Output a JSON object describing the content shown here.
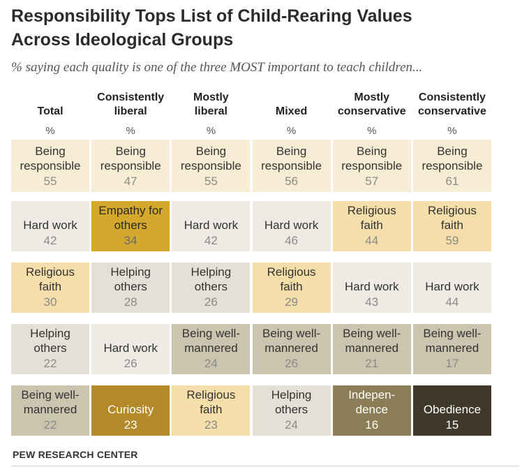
{
  "title_line1": "Responsibility Tops List of Child-Rearing Values",
  "title_line2": "Across Ideological Groups",
  "subtitle": "% saying each quality is one of the three MOST important to teach children...",
  "source": "PEW RESEARCH CENTER",
  "colors": {
    "being_responsible": "#f7edd4",
    "hard_work": "#eeebe4",
    "religious_faith": "#f4dfaa",
    "helping_others": "#e4e0d6",
    "being_well_mannered": "#cbc4ae",
    "empathy_for_others": "#d4a82c",
    "curiosity": "#b3892a",
    "independence": "#8b7d55",
    "obedience": "#3d3829"
  },
  "chart_data": {
    "type": "table",
    "title": "Responsibility Tops List of Child-Rearing Values Across Ideological Groups",
    "subtitle": "% saying each quality is one of the three MOST important to teach children...",
    "unit_row": "%",
    "columns": [
      {
        "header_line1": "",
        "header_line2": "Total",
        "unit": "%",
        "ranks": [
          {
            "quality_lines": [
              "Being",
              "responsible"
            ],
            "value": 55,
            "color_key": "being_responsible"
          },
          {
            "quality_lines": [
              "Hard work"
            ],
            "value": 42,
            "color_key": "hard_work"
          },
          {
            "quality_lines": [
              "Religious",
              "faith"
            ],
            "value": 30,
            "color_key": "religious_faith"
          },
          {
            "quality_lines": [
              "Helping",
              "others"
            ],
            "value": 22,
            "color_key": "helping_others"
          },
          {
            "quality_lines": [
              "Being well-",
              "mannered"
            ],
            "value": 22,
            "color_key": "being_well_mannered"
          }
        ]
      },
      {
        "header_line1": "Consistently",
        "header_line2": "liberal",
        "unit": "%",
        "ranks": [
          {
            "quality_lines": [
              "Being",
              "responsible"
            ],
            "value": 47,
            "color_key": "being_responsible"
          },
          {
            "quality_lines": [
              "Empathy for",
              "others"
            ],
            "value": 34,
            "color_key": "empathy_for_others"
          },
          {
            "quality_lines": [
              "Helping",
              "others"
            ],
            "value": 28,
            "color_key": "helping_others"
          },
          {
            "quality_lines": [
              "Hard work"
            ],
            "value": 26,
            "color_key": "hard_work"
          },
          {
            "quality_lines": [
              "Curiosity"
            ],
            "value": 23,
            "color_key": "curiosity"
          }
        ]
      },
      {
        "header_line1": "Mostly",
        "header_line2": "liberal",
        "unit": "%",
        "ranks": [
          {
            "quality_lines": [
              "Being",
              "responsible"
            ],
            "value": 55,
            "color_key": "being_responsible"
          },
          {
            "quality_lines": [
              "Hard work"
            ],
            "value": 42,
            "color_key": "hard_work"
          },
          {
            "quality_lines": [
              "Helping",
              "others"
            ],
            "value": 26,
            "color_key": "helping_others"
          },
          {
            "quality_lines": [
              "Being well-",
              "mannered"
            ],
            "value": 24,
            "color_key": "being_well_mannered"
          },
          {
            "quality_lines": [
              "Religious",
              "faith"
            ],
            "value": 23,
            "color_key": "religious_faith"
          }
        ]
      },
      {
        "header_line1": "",
        "header_line2": "Mixed",
        "unit": "%",
        "ranks": [
          {
            "quality_lines": [
              "Being",
              "responsible"
            ],
            "value": 56,
            "color_key": "being_responsible"
          },
          {
            "quality_lines": [
              "Hard work"
            ],
            "value": 46,
            "color_key": "hard_work"
          },
          {
            "quality_lines": [
              "Religious",
              "faith"
            ],
            "value": 29,
            "color_key": "religious_faith"
          },
          {
            "quality_lines": [
              "Being well-",
              "mannered"
            ],
            "value": 26,
            "color_key": "being_well_mannered"
          },
          {
            "quality_lines": [
              "Helping",
              "others"
            ],
            "value": 24,
            "color_key": "helping_others"
          }
        ]
      },
      {
        "header_line1": "Mostly",
        "header_line2": "conservative",
        "unit": "%",
        "ranks": [
          {
            "quality_lines": [
              "Being",
              "responsible"
            ],
            "value": 57,
            "color_key": "being_responsible"
          },
          {
            "quality_lines": [
              "Religious",
              "faith"
            ],
            "value": 44,
            "color_key": "religious_faith"
          },
          {
            "quality_lines": [
              "Hard work"
            ],
            "value": 43,
            "color_key": "hard_work"
          },
          {
            "quality_lines": [
              "Being well-",
              "mannered"
            ],
            "value": 21,
            "color_key": "being_well_mannered"
          },
          {
            "quality_lines": [
              "Indepen-",
              "dence"
            ],
            "value": 16,
            "color_key": "independence"
          }
        ]
      },
      {
        "header_line1": "Consistently",
        "header_line2": "conservative",
        "unit": "%",
        "ranks": [
          {
            "quality_lines": [
              "Being",
              "responsible"
            ],
            "value": 61,
            "color_key": "being_responsible"
          },
          {
            "quality_lines": [
              "Religious",
              "faith"
            ],
            "value": 59,
            "color_key": "religious_faith"
          },
          {
            "quality_lines": [
              "Hard work"
            ],
            "value": 44,
            "color_key": "hard_work"
          },
          {
            "quality_lines": [
              "Being well-",
              "mannered"
            ],
            "value": 17,
            "color_key": "being_well_mannered"
          },
          {
            "quality_lines": [
              "Obedience"
            ],
            "value": 15,
            "color_key": "obedience"
          }
        ]
      }
    ]
  }
}
